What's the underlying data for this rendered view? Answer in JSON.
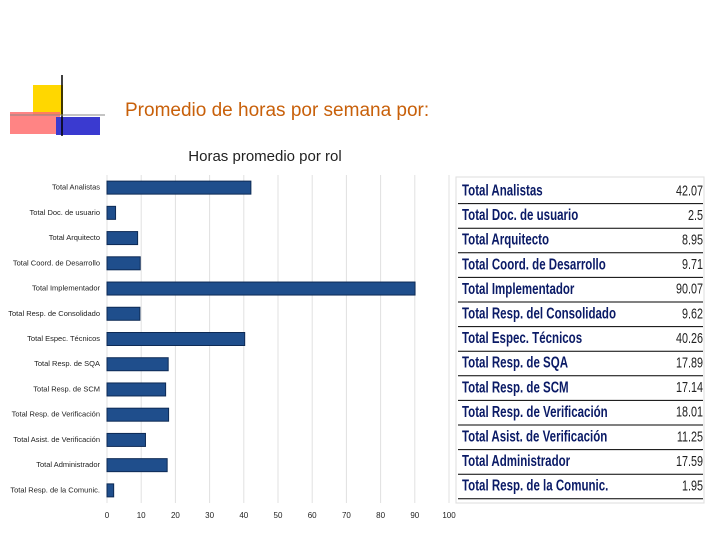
{
  "heading": "Promedio de horas por semana por:",
  "chart_data": {
    "type": "bar",
    "orientation": "horizontal",
    "title": "Horas promedio por rol",
    "categories": [
      "Total Analistas",
      "Total Doc. de usuario",
      "Total Arquitecto",
      "Total Coord. de Desarrollo",
      "Total Implementador",
      "Total Resp. de Consolidado",
      "Total Espec. Técnicos",
      "Total Resp. de SQA",
      "Total Resp. de SCM",
      "Total Resp. de Verificación",
      "Total Asist. de Verificación",
      "Total Administrador",
      "Total Resp. de la Comunic."
    ],
    "values": [
      42.07,
      2.5,
      8.95,
      9.71,
      90.07,
      9.62,
      40.26,
      17.89,
      17.14,
      18.01,
      11.25,
      17.59,
      1.95
    ],
    "color": "#1f4e8c",
    "xlim": [
      0,
      100
    ],
    "xticks": [
      0,
      10,
      20,
      30,
      40,
      50,
      60,
      70,
      80,
      90,
      100
    ],
    "grid": true
  },
  "table": {
    "rows": [
      [
        "Total Analistas",
        42.07
      ],
      [
        "Total Doc. de usuario",
        2.5
      ],
      [
        "Total Arquitecto",
        8.95
      ],
      [
        "Total Coord. de Desarrollo",
        9.71
      ],
      [
        "Total Implementador",
        90.07
      ],
      [
        "Total Resp. del Consolidado",
        9.62
      ],
      [
        "Total Espec. Técnicos",
        40.26
      ],
      [
        "Total Resp. de SQA",
        17.89
      ],
      [
        "Total Resp. de SCM",
        17.14
      ],
      [
        "Total Resp. de Verificación",
        18.01
      ],
      [
        "Total Asist. de Verificación",
        11.25
      ],
      [
        "Total Administrador",
        17.59
      ],
      [
        "Total Resp. de la Comunic.",
        1.95
      ]
    ]
  }
}
